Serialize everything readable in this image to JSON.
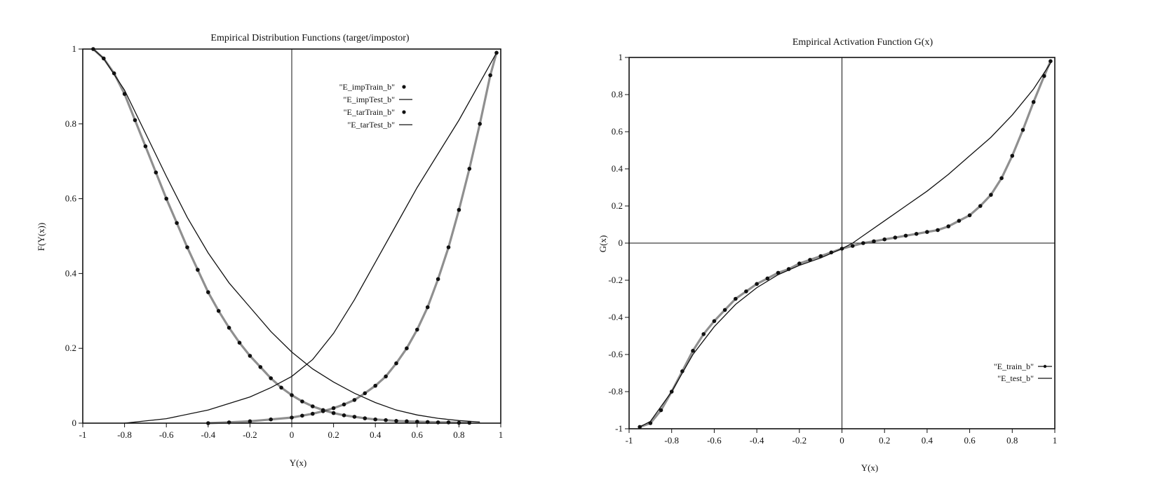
{
  "chart_data": [
    {
      "type": "line",
      "title": "Empirical Distribution Functions (target/impostor)",
      "xlabel": "Y(x)",
      "ylabel": "F(Y(x))",
      "xlim": [
        -1,
        1
      ],
      "ylim": [
        0,
        1
      ],
      "grid": false,
      "zero_lines": [
        "x"
      ],
      "legend_position": "top-right",
      "xticks": [
        {
          "v": -1,
          "label": "-1"
        },
        {
          "v": -0.8,
          "label": "-0.8"
        },
        {
          "v": -0.6,
          "label": "-0.6"
        },
        {
          "v": -0.4,
          "label": "-0.4"
        },
        {
          "v": -0.2,
          "label": "-0.2"
        },
        {
          "v": 0,
          "label": "0"
        },
        {
          "v": 0.2,
          "label": "0.2"
        },
        {
          "v": 0.4,
          "label": "0.4"
        },
        {
          "v": 0.6,
          "label": "0.6"
        },
        {
          "v": 0.8,
          "label": "0.8"
        },
        {
          "v": 1,
          "label": "1"
        }
      ],
      "yticks": [
        {
          "v": 0,
          "label": "0"
        },
        {
          "v": 0.2,
          "label": "0.2"
        },
        {
          "v": 0.4,
          "label": "0.4"
        },
        {
          "v": 0.6,
          "label": "0.6"
        },
        {
          "v": 0.8,
          "label": "0.8"
        },
        {
          "v": 1,
          "label": "1"
        }
      ],
      "series": [
        {
          "name": "\"E_impTrain_b\"",
          "style": "markers",
          "x": [
            -0.95,
            -0.9,
            -0.85,
            -0.8,
            -0.75,
            -0.7,
            -0.65,
            -0.6,
            -0.55,
            -0.5,
            -0.45,
            -0.4,
            -0.35,
            -0.3,
            -0.25,
            -0.2,
            -0.15,
            -0.1,
            -0.05,
            0,
            0.05,
            0.1,
            0.15,
            0.2,
            0.25,
            0.3,
            0.35,
            0.4,
            0.45,
            0.5,
            0.55,
            0.6,
            0.65,
            0.7,
            0.75,
            0.8,
            0.85
          ],
          "y": [
            1.0,
            0.975,
            0.935,
            0.88,
            0.81,
            0.74,
            0.67,
            0.6,
            0.535,
            0.47,
            0.41,
            0.35,
            0.3,
            0.255,
            0.215,
            0.18,
            0.15,
            0.12,
            0.095,
            0.075,
            0.058,
            0.045,
            0.035,
            0.027,
            0.021,
            0.017,
            0.013,
            0.01,
            0.008,
            0.006,
            0.005,
            0.004,
            0.003,
            0.002,
            0.002,
            0.001,
            0.001
          ]
        },
        {
          "name": "\"E_impTest_b\"",
          "style": "line",
          "x": [
            -0.95,
            -0.9,
            -0.8,
            -0.7,
            -0.6,
            -0.5,
            -0.4,
            -0.3,
            -0.2,
            -0.1,
            0,
            0.1,
            0.2,
            0.3,
            0.4,
            0.5,
            0.6,
            0.7,
            0.8,
            0.9
          ],
          "y": [
            1.0,
            0.975,
            0.89,
            0.775,
            0.66,
            0.55,
            0.455,
            0.375,
            0.31,
            0.245,
            0.19,
            0.145,
            0.11,
            0.08,
            0.055,
            0.035,
            0.022,
            0.013,
            0.007,
            0.003
          ]
        },
        {
          "name": "\"E_tarTrain_b\"",
          "style": "markers",
          "x": [
            -0.4,
            -0.3,
            -0.2,
            -0.1,
            0,
            0.05,
            0.1,
            0.15,
            0.2,
            0.25,
            0.3,
            0.35,
            0.4,
            0.45,
            0.5,
            0.55,
            0.6,
            0.65,
            0.7,
            0.75,
            0.8,
            0.85,
            0.9,
            0.95,
            0.98
          ],
          "y": [
            0.0,
            0.002,
            0.005,
            0.01,
            0.015,
            0.02,
            0.025,
            0.032,
            0.04,
            0.05,
            0.062,
            0.08,
            0.1,
            0.125,
            0.16,
            0.2,
            0.25,
            0.31,
            0.385,
            0.47,
            0.57,
            0.68,
            0.8,
            0.93,
            0.99
          ]
        },
        {
          "name": "\"E_tarTest_b\"",
          "style": "line",
          "x": [
            -0.8,
            -0.6,
            -0.4,
            -0.2,
            -0.1,
            0,
            0.1,
            0.2,
            0.3,
            0.4,
            0.5,
            0.6,
            0.7,
            0.8,
            0.9,
            0.98
          ],
          "y": [
            0.0,
            0.012,
            0.035,
            0.07,
            0.095,
            0.125,
            0.17,
            0.24,
            0.33,
            0.43,
            0.53,
            0.63,
            0.72,
            0.81,
            0.91,
            0.99
          ]
        }
      ]
    },
    {
      "type": "line",
      "title": "Empirical Activation Function G(x)",
      "xlabel": "Y(x)",
      "ylabel": "G(x)",
      "xlim": [
        -1,
        1
      ],
      "ylim": [
        -1,
        1
      ],
      "grid": false,
      "zero_lines": [
        "x",
        "y"
      ],
      "legend_position": "bottom-right",
      "xticks": [
        {
          "v": -1,
          "label": "-1"
        },
        {
          "v": -0.8,
          "label": "-0.8"
        },
        {
          "v": -0.6,
          "label": "-0.6"
        },
        {
          "v": -0.4,
          "label": "-0.4"
        },
        {
          "v": -0.2,
          "label": "-0.2"
        },
        {
          "v": 0,
          "label": "0"
        },
        {
          "v": 0.2,
          "label": "0.2"
        },
        {
          "v": 0.4,
          "label": "0.4"
        },
        {
          "v": 0.6,
          "label": "0.6"
        },
        {
          "v": 0.8,
          "label": "0.8"
        },
        {
          "v": 1,
          "label": "1"
        }
      ],
      "yticks": [
        {
          "v": -1,
          "label": "-1"
        },
        {
          "v": -0.8,
          "label": "-0.8"
        },
        {
          "v": -0.6,
          "label": "-0.6"
        },
        {
          "v": -0.4,
          "label": "-0.4"
        },
        {
          "v": -0.2,
          "label": "-0.2"
        },
        {
          "v": 0,
          "label": "0"
        },
        {
          "v": 0.2,
          "label": "0.2"
        },
        {
          "v": 0.4,
          "label": "0.4"
        },
        {
          "v": 0.6,
          "label": "0.6"
        },
        {
          "v": 0.8,
          "label": "0.8"
        },
        {
          "v": 1,
          "label": "1"
        }
      ],
      "series": [
        {
          "name": "\"E_train_b\"",
          "style": "markers",
          "x": [
            -0.95,
            -0.9,
            -0.85,
            -0.8,
            -0.75,
            -0.7,
            -0.65,
            -0.6,
            -0.55,
            -0.5,
            -0.45,
            -0.4,
            -0.35,
            -0.3,
            -0.25,
            -0.2,
            -0.15,
            -0.1,
            -0.05,
            0,
            0.05,
            0.1,
            0.15,
            0.2,
            0.25,
            0.3,
            0.35,
            0.4,
            0.45,
            0.5,
            0.55,
            0.6,
            0.65,
            0.7,
            0.75,
            0.8,
            0.85,
            0.9,
            0.95,
            0.98
          ],
          "y": [
            -0.99,
            -0.97,
            -0.9,
            -0.8,
            -0.69,
            -0.58,
            -0.49,
            -0.42,
            -0.36,
            -0.3,
            -0.26,
            -0.22,
            -0.19,
            -0.16,
            -0.14,
            -0.11,
            -0.09,
            -0.07,
            -0.05,
            -0.03,
            -0.015,
            0.0,
            0.01,
            0.02,
            0.03,
            0.04,
            0.05,
            0.06,
            0.07,
            0.09,
            0.12,
            0.15,
            0.2,
            0.26,
            0.35,
            0.47,
            0.61,
            0.76,
            0.9,
            0.98
          ]
        },
        {
          "name": "\"E_test_b\"",
          "style": "line",
          "x": [
            -0.95,
            -0.9,
            -0.8,
            -0.7,
            -0.6,
            -0.5,
            -0.4,
            -0.3,
            -0.2,
            -0.1,
            0,
            0.05,
            0.1,
            0.2,
            0.3,
            0.4,
            0.5,
            0.6,
            0.7,
            0.8,
            0.9,
            0.98
          ],
          "y": [
            -0.99,
            -0.96,
            -0.8,
            -0.6,
            -0.45,
            -0.33,
            -0.24,
            -0.17,
            -0.12,
            -0.08,
            -0.03,
            0.0,
            0.04,
            0.12,
            0.2,
            0.28,
            0.37,
            0.47,
            0.57,
            0.69,
            0.83,
            0.97
          ]
        }
      ]
    }
  ]
}
